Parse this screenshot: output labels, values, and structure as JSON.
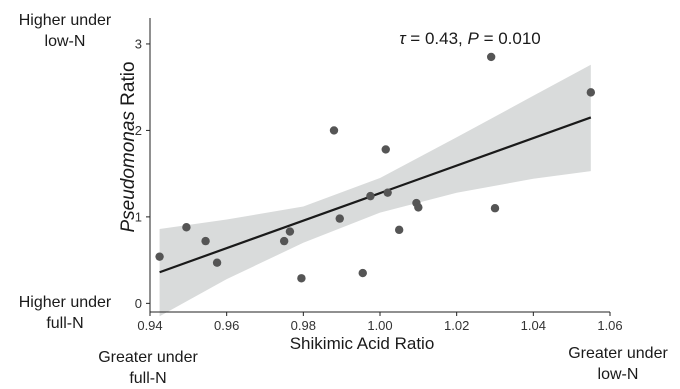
{
  "chart_data": {
    "type": "scatter",
    "xlabel": "Shikimic Acid Ratio",
    "ylabel_italic": "Pseudomonas",
    "ylabel_rest": " Ratio",
    "xlim": [
      0.94,
      1.06
    ],
    "ylim": [
      -0.1,
      3.3
    ],
    "xticks": [
      0.94,
      0.96,
      0.98,
      1.0,
      1.02,
      1.04,
      1.06
    ],
    "xtick_labels": [
      "0.94",
      "0.96",
      "0.98",
      "1.00",
      "1.02",
      "1.04",
      "1.06"
    ],
    "yticks": [
      0,
      1,
      2,
      3
    ],
    "ytick_labels": [
      "0",
      "1",
      "2",
      "3"
    ],
    "grid": false,
    "points": [
      {
        "x": 0.9425,
        "y": 0.54
      },
      {
        "x": 0.9495,
        "y": 0.88
      },
      {
        "x": 0.9545,
        "y": 0.72
      },
      {
        "x": 0.9575,
        "y": 0.47
      },
      {
        "x": 0.975,
        "y": 0.72
      },
      {
        "x": 0.9765,
        "y": 0.83
      },
      {
        "x": 0.9795,
        "y": 0.29
      },
      {
        "x": 0.988,
        "y": 2.0
      },
      {
        "x": 0.9895,
        "y": 0.98
      },
      {
        "x": 0.9955,
        "y": 0.35
      },
      {
        "x": 0.9975,
        "y": 1.24
      },
      {
        "x": 1.0015,
        "y": 1.78
      },
      {
        "x": 1.002,
        "y": 1.28
      },
      {
        "x": 1.005,
        "y": 0.85
      },
      {
        "x": 1.0095,
        "y": 1.16
      },
      {
        "x": 1.01,
        "y": 1.11
      },
      {
        "x": 1.029,
        "y": 2.85
      },
      {
        "x": 1.03,
        "y": 1.1
      },
      {
        "x": 1.055,
        "y": 2.44
      }
    ],
    "fit_line": {
      "x": [
        0.9425,
        1.055
      ],
      "y": [
        0.36,
        2.15
      ]
    },
    "confidence_band": {
      "x": [
        0.9425,
        0.96,
        0.98,
        1.0,
        1.02,
        1.04,
        1.055
      ],
      "upper": [
        0.86,
        0.97,
        1.12,
        1.45,
        1.92,
        2.4,
        2.76
      ],
      "lower": [
        -0.15,
        0.28,
        0.7,
        1.05,
        1.28,
        1.44,
        1.53
      ]
    },
    "annotation": {
      "tau_symbol": "τ",
      "tau_value": " = 0.43, ",
      "p_symbol": "P",
      "p_value": " = 0.010"
    },
    "colors": {
      "point": "#555555",
      "line": "#1a1a1a",
      "band": "#d9dbdb",
      "axis": "#222222"
    }
  },
  "corner_labels": {
    "top_left_line1": "Higher under",
    "top_left_line2": "low-N",
    "bottom_left_line1": "Higher under",
    "bottom_left_line2": "full-N",
    "bottom_mid_line1": "Greater under",
    "bottom_mid_line2": "full-N",
    "bottom_right_line1": "Greater under",
    "bottom_right_line2": "low-N"
  }
}
